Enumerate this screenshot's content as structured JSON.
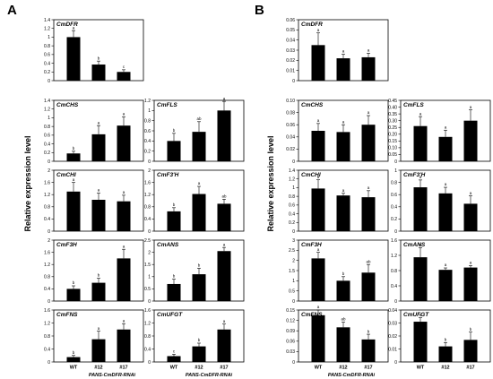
{
  "figure": {
    "y_axis_label": "Relative expression level",
    "group_label": "PANS-CmDFR-RNAi"
  },
  "chart_data": [
    {
      "panel": "A",
      "gene": "CmDFR",
      "type": "bar",
      "categories": [
        "WT",
        "#12",
        "#17"
      ],
      "values": [
        1.0,
        0.37,
        0.2
      ],
      "errors": [
        0.15,
        0.08,
        0.05
      ],
      "letters": [
        "a",
        "b",
        "c"
      ],
      "ylim": [
        0,
        1.4
      ],
      "ticks": [
        "0",
        "0.2",
        "0.4",
        "0.6",
        "0.8",
        "1",
        "1.2",
        "1.4"
      ],
      "xlabels": false
    },
    {
      "panel": "A",
      "gene": "CmCHS",
      "type": "bar",
      "categories": [
        "WT",
        "#12",
        "#17"
      ],
      "values": [
        0.18,
        0.62,
        0.82
      ],
      "errors": [
        0.05,
        0.2,
        0.2
      ],
      "letters": [
        "b",
        "a",
        "a"
      ],
      "ylim": [
        0,
        1.4
      ],
      "ticks": [
        "0",
        "0.2",
        "0.4",
        "0.6",
        "0.8",
        "1",
        "1.2",
        "1.4"
      ],
      "xlabels": false
    },
    {
      "panel": "A",
      "gene": "CmFLS",
      "type": "bar",
      "categories": [
        "WT",
        "#12",
        "#17"
      ],
      "values": [
        0.4,
        0.58,
        1.0
      ],
      "errors": [
        0.15,
        0.2,
        0.18
      ],
      "letters": [
        "b",
        "ab",
        "a"
      ],
      "ylim": [
        0,
        1.2
      ],
      "ticks": [
        "0",
        "0.2",
        "0.4",
        "0.6",
        "0.8",
        "1",
        "1.2"
      ],
      "xlabels": false
    },
    {
      "panel": "A",
      "gene": "CmCHI",
      "type": "bar",
      "categories": [
        "WT",
        "#12",
        "#17"
      ],
      "values": [
        1.3,
        1.03,
        0.98
      ],
      "errors": [
        0.3,
        0.22,
        0.2
      ],
      "letters": [
        "a",
        "a",
        "a"
      ],
      "ylim": [
        0,
        2
      ],
      "ticks": [
        "0",
        "0.4",
        "0.8",
        "1.2",
        "1.6",
        "2"
      ],
      "xlabels": false
    },
    {
      "panel": "A",
      "gene": "CmF3'H",
      "type": "bar",
      "categories": [
        "WT",
        "#12",
        "#17"
      ],
      "values": [
        0.65,
        1.22,
        0.9
      ],
      "errors": [
        0.12,
        0.25,
        0.15
      ],
      "letters": [
        "b",
        "a",
        "ab"
      ],
      "ylim": [
        0,
        2
      ],
      "ticks": [
        "0",
        "0.4",
        "0.8",
        "1.2",
        "1.6",
        "2"
      ],
      "xlabels": false
    },
    {
      "panel": "A",
      "gene": "CmF3H",
      "type": "bar",
      "categories": [
        "WT",
        "#12",
        "#17"
      ],
      "values": [
        0.4,
        0.6,
        1.4
      ],
      "errors": [
        0.1,
        0.15,
        0.3
      ],
      "letters": [
        "b",
        "b",
        "a"
      ],
      "ylim": [
        0,
        2
      ],
      "ticks": [
        "0",
        "0.4",
        "0.8",
        "1.2",
        "1.6",
        "2"
      ],
      "xlabels": false
    },
    {
      "panel": "A",
      "gene": "CmANS",
      "type": "bar",
      "categories": [
        "WT",
        "#12",
        "#17"
      ],
      "values": [
        0.7,
        1.1,
        2.05
      ],
      "errors": [
        0.2,
        0.25,
        0.15
      ],
      "letters": [
        "b",
        "b",
        "a"
      ],
      "ylim": [
        0,
        2.5
      ],
      "ticks": [
        "0",
        "0.5",
        "1",
        "1.5",
        "2",
        "2.5"
      ],
      "xlabels": false
    },
    {
      "panel": "A",
      "gene": "CmFNS",
      "type": "bar",
      "categories": [
        "WT",
        "#12",
        "#17"
      ],
      "values": [
        0.15,
        0.7,
        1.0
      ],
      "errors": [
        0.05,
        0.25,
        0.18
      ],
      "letters": [
        "b",
        "a",
        "a"
      ],
      "ylim": [
        0,
        1.6
      ],
      "ticks": [
        "0",
        "0.4",
        "0.8",
        "1.2",
        "1.6"
      ],
      "xlabels": true
    },
    {
      "panel": "A",
      "gene": "CmUFGT",
      "type": "bar",
      "categories": [
        "WT",
        "#12",
        "#17"
      ],
      "values": [
        0.18,
        0.48,
        1.0
      ],
      "errors": [
        0.06,
        0.1,
        0.17
      ],
      "letters": [
        "c",
        "b",
        "a"
      ],
      "ylim": [
        0,
        1.6
      ],
      "ticks": [
        "0",
        "0.4",
        "0.8",
        "1.2",
        "1.6"
      ],
      "xlabels": true
    },
    {
      "panel": "B",
      "gene": "CmDFR",
      "type": "bar",
      "categories": [
        "WT",
        "#12",
        "#17"
      ],
      "values": [
        0.035,
        0.022,
        0.023
      ],
      "errors": [
        0.012,
        0.004,
        0.004
      ],
      "letters": [
        "a",
        "a",
        "a"
      ],
      "ylim": [
        0,
        0.06
      ],
      "ticks": [
        "0",
        "0.01",
        "0.02",
        "0.03",
        "0.04",
        "0.05",
        "0.06"
      ],
      "xlabels": false
    },
    {
      "panel": "B",
      "gene": "CmCHS",
      "type": "bar",
      "categories": [
        "WT",
        "#12",
        "#17"
      ],
      "values": [
        0.05,
        0.048,
        0.06
      ],
      "errors": [
        0.012,
        0.012,
        0.015
      ],
      "letters": [
        "a",
        "a",
        "a"
      ],
      "ylim": [
        0,
        0.1
      ],
      "ticks": [
        "0",
        "0.02",
        "0.04",
        "0.06",
        "0.08",
        "0.10"
      ],
      "xlabels": false
    },
    {
      "panel": "B",
      "gene": "CmFLS",
      "type": "bar",
      "categories": [
        "WT",
        "#12",
        "#17"
      ],
      "values": [
        0.26,
        0.18,
        0.3
      ],
      "errors": [
        0.07,
        0.05,
        0.08
      ],
      "letters": [
        "a",
        "a",
        "a"
      ],
      "ylim": [
        0,
        0.45
      ],
      "ticks": [
        "0",
        "0.05",
        "0.10",
        "0.15",
        "0.20",
        "0.25",
        "0.30",
        "0.35",
        "0.40",
        "0.45"
      ],
      "xlabels": false
    },
    {
      "panel": "B",
      "gene": "CmCHI",
      "type": "bar",
      "categories": [
        "WT",
        "#12",
        "#17"
      ],
      "values": [
        0.98,
        0.82,
        0.78
      ],
      "errors": [
        0.2,
        0.05,
        0.15
      ],
      "letters": [
        "a",
        "a",
        "a"
      ],
      "ylim": [
        0,
        1.4
      ],
      "ticks": [
        "0",
        "0.2",
        "0.4",
        "0.6",
        "0.8",
        "1",
        "1.2",
        "1.4"
      ],
      "xlabels": false
    },
    {
      "panel": "B",
      "gene": "CmF3'H",
      "type": "bar",
      "categories": [
        "WT",
        "#12",
        "#17"
      ],
      "values": [
        0.72,
        0.62,
        0.45
      ],
      "errors": [
        0.12,
        0.1,
        0.13
      ],
      "letters": [
        "a",
        "a",
        "a"
      ],
      "ylim": [
        0,
        1
      ],
      "ticks": [
        "0",
        "0.2",
        "0.4",
        "0.6",
        "0.8",
        "1"
      ],
      "xlabels": false
    },
    {
      "panel": "B",
      "gene": "CmF3H",
      "type": "bar",
      "categories": [
        "WT",
        "#12",
        "#17"
      ],
      "values": [
        2.1,
        1.0,
        1.4
      ],
      "errors": [
        0.3,
        0.2,
        0.4
      ],
      "letters": [
        "a",
        "b",
        "ab"
      ],
      "ylim": [
        0,
        3
      ],
      "ticks": [
        "0",
        "0.5",
        "1",
        "1.5",
        "2",
        "2.5",
        "3"
      ],
      "xlabels": false
    },
    {
      "panel": "B",
      "gene": "CmANS",
      "type": "bar",
      "categories": [
        "WT",
        "#12",
        "#17"
      ],
      "values": [
        1.15,
        0.82,
        0.88
      ],
      "errors": [
        0.25,
        0.05,
        0.05
      ],
      "letters": [
        "a",
        "a",
        "a"
      ],
      "ylim": [
        0,
        1.6
      ],
      "ticks": [
        "0",
        "0.4",
        "0.8",
        "1.2",
        "1.6"
      ],
      "xlabels": false
    },
    {
      "panel": "B",
      "gene": "CmFNS",
      "type": "bar",
      "categories": [
        "WT",
        "#12",
        "#17"
      ],
      "values": [
        0.135,
        0.1,
        0.065
      ],
      "errors": [
        0.015,
        0.015,
        0.015
      ],
      "letters": [
        "a",
        "ab",
        "b"
      ],
      "ylim": [
        0,
        0.15
      ],
      "ticks": [
        "0",
        "0.03",
        "0.06",
        "0.09",
        "0.12",
        "0.15"
      ],
      "xlabels": true
    },
    {
      "panel": "B",
      "gene": "CmUFGT",
      "type": "bar",
      "categories": [
        "WT",
        "#12",
        "#17"
      ],
      "values": [
        0.031,
        0.012,
        0.017
      ],
      "errors": [
        0.003,
        0.003,
        0.006
      ],
      "letters": [
        "a",
        "b",
        "b"
      ],
      "ylim": [
        0,
        0.04
      ],
      "ticks": [
        "0",
        "0.01",
        "0.02",
        "0.03",
        "0.04"
      ],
      "xlabels": true
    }
  ],
  "panel_letters": [
    "A",
    "B"
  ]
}
